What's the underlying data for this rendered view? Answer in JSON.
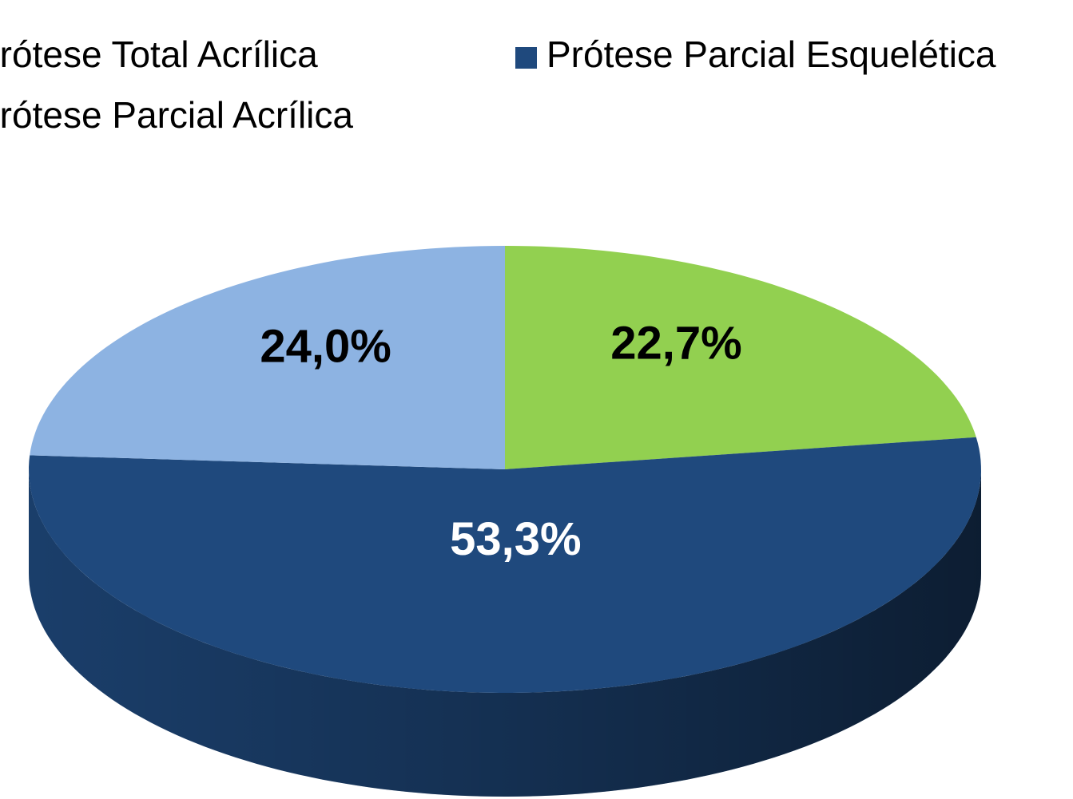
{
  "chart_data": {
    "type": "pie",
    "categories": [
      "Prótese Total Acrílica",
      "Prótese Parcial Esquelética",
      "Prótese Parcial Acrílica"
    ],
    "values": [
      22.7,
      53.3,
      24.0
    ],
    "value_labels": [
      "22,7%",
      "53,3%",
      "24,0%"
    ],
    "colors": [
      "#92d050",
      "#1f497d",
      "#8db3e2"
    ],
    "legend": "top"
  }
}
